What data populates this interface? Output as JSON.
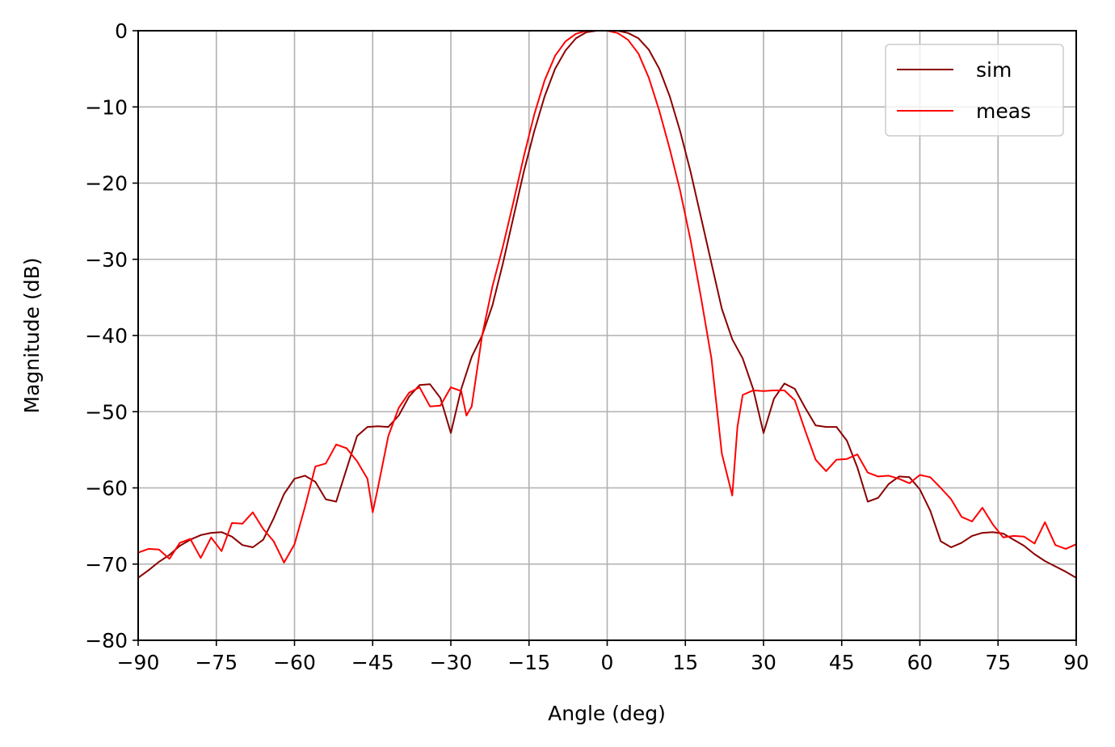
{
  "chart_data": {
    "type": "line",
    "title": "",
    "xlabel": "Angle (deg)",
    "ylabel": "Magnitude (dB)",
    "xlim": [
      -90,
      90
    ],
    "ylim": [
      -80,
      0
    ],
    "xticks": [
      -90,
      -75,
      -60,
      -45,
      -30,
      -15,
      0,
      15,
      30,
      45,
      60,
      75,
      90
    ],
    "yticks": [
      0,
      -10,
      -20,
      -30,
      -40,
      -50,
      -60,
      -70,
      -80
    ],
    "xtick_labels": [
      "−90",
      "−75",
      "−60",
      "−45",
      "−30",
      "−15",
      "0",
      "15",
      "30",
      "45",
      "60",
      "75",
      "90"
    ],
    "ytick_labels": [
      "0",
      "−10",
      "−20",
      "−30",
      "−40",
      "−50",
      "−60",
      "−70",
      "−80"
    ],
    "grid": true,
    "legend_position": "top-right",
    "series": [
      {
        "name": "sim",
        "color": "#8b0000",
        "x": [
          -90,
          -88,
          -86,
          -84,
          -82,
          -80,
          -78,
          -76,
          -74,
          -72,
          -70,
          -68,
          -66,
          -64,
          -62,
          -60,
          -58,
          -56,
          -54,
          -52,
          -50,
          -48,
          -46,
          -44,
          -42,
          -40,
          -38,
          -36,
          -34,
          -32,
          -30,
          -28,
          -26,
          -24,
          -22,
          -20,
          -18,
          -16,
          -14,
          -12,
          -10,
          -8,
          -6,
          -4,
          -2,
          0,
          2,
          4,
          6,
          8,
          10,
          12,
          14,
          16,
          18,
          20,
          22,
          24,
          26,
          28,
          30,
          32,
          34,
          36,
          38,
          40,
          42,
          44,
          46,
          48,
          50,
          52,
          54,
          56,
          58,
          60,
          62,
          64,
          66,
          68,
          70,
          72,
          74,
          76,
          78,
          80,
          82,
          84,
          86,
          88,
          90
        ],
        "y": [
          -71.8,
          -70.8,
          -69.7,
          -68.8,
          -67.6,
          -66.8,
          -66.2,
          -65.9,
          -65.8,
          -66.4,
          -67.5,
          -67.8,
          -66.8,
          -64,
          -60.8,
          -58.8,
          -58.4,
          -59.2,
          -61.5,
          -61.8,
          -57.5,
          -53.2,
          -52,
          -51.9,
          -52,
          -50.5,
          -48,
          -46.5,
          -46.4,
          -48.2,
          -52.8,
          -47,
          -42.8,
          -40,
          -36,
          -30.5,
          -24.5,
          -18.5,
          -13.2,
          -8.6,
          -5,
          -2.6,
          -1,
          -0.2,
          0,
          0,
          0,
          -0.3,
          -1,
          -2.5,
          -5,
          -8.6,
          -13.2,
          -18.5,
          -24.5,
          -30.5,
          -36.5,
          -40.5,
          -43,
          -47,
          -52.8,
          -48.3,
          -46.3,
          -47,
          -49.5,
          -51.8,
          -52,
          -52,
          -53.8,
          -57.3,
          -61.8,
          -61.3,
          -59.5,
          -58.5,
          -58.6,
          -60.2,
          -63,
          -67,
          -67.8,
          -67.2,
          -66.3,
          -65.9,
          -65.8,
          -66,
          -66.8,
          -67.6,
          -68.7,
          -69.6,
          -70.3,
          -71,
          -71.8
        ]
      },
      {
        "name": "meas",
        "color": "#ff0000",
        "x": [
          -90,
          -88,
          -86,
          -84,
          -82,
          -80,
          -78,
          -76,
          -74,
          -72,
          -70,
          -68,
          -66,
          -64,
          -62,
          -60,
          -58,
          -56,
          -54,
          -52,
          -50,
          -48,
          -46,
          -45,
          -44,
          -42,
          -40,
          -38,
          -36,
          -34,
          -32,
          -30,
          -28,
          -27,
          -26,
          -24,
          -22,
          -20,
          -18,
          -16,
          -14,
          -12,
          -10,
          -8,
          -6,
          -4,
          -2,
          0,
          2,
          4,
          6,
          8,
          10,
          12,
          14,
          16,
          18,
          20,
          22,
          24,
          25,
          26,
          28,
          30,
          32,
          34,
          36,
          38,
          40,
          42,
          44,
          46,
          48,
          50,
          52,
          54,
          56,
          58,
          60,
          62,
          64,
          66,
          68,
          70,
          72,
          74,
          76,
          78,
          80,
          82,
          84,
          86,
          88,
          90
        ],
        "y": [
          -68.5,
          -68,
          -68.1,
          -69.3,
          -67.2,
          -66.7,
          -69.2,
          -66.5,
          -68.3,
          -64.6,
          -64.7,
          -63.2,
          -65.4,
          -67,
          -69.8,
          -67.4,
          -62.5,
          -57.2,
          -56.8,
          -54.3,
          -54.8,
          -56.5,
          -58.8,
          -63.2,
          -60,
          -53.2,
          -49.5,
          -47.5,
          -46.8,
          -49.3,
          -49.2,
          -46.8,
          -47.3,
          -50.5,
          -49.3,
          -40,
          -33.5,
          -28.3,
          -22.5,
          -16.5,
          -11,
          -6.5,
          -3.3,
          -1.4,
          -0.4,
          0,
          0,
          0,
          -0.3,
          -1.2,
          -3,
          -6.2,
          -10.5,
          -15.5,
          -21,
          -27.5,
          -35,
          -43,
          -55.5,
          -61,
          -52,
          -47.8,
          -47.2,
          -47.3,
          -47.2,
          -47.2,
          -48.5,
          -52.5,
          -56.3,
          -57.8,
          -56.3,
          -56.2,
          -55.6,
          -58,
          -58.5,
          -58.4,
          -58.8,
          -59.4,
          -58.3,
          -58.6,
          -60,
          -61.5,
          -63.8,
          -64.4,
          -62.6,
          -64.8,
          -66.5,
          -66.3,
          -66.4,
          -67.3,
          -64.5,
          -67.5,
          -68,
          -67.4
        ]
      }
    ]
  }
}
